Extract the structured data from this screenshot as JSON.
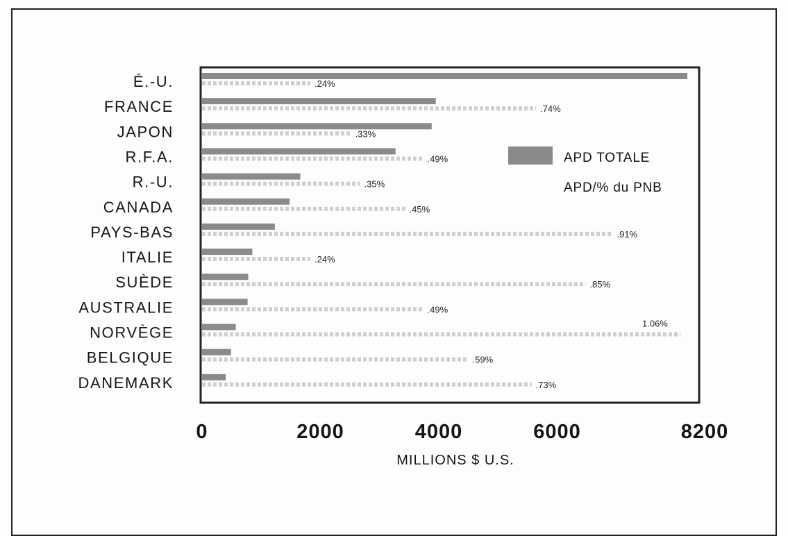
{
  "chart_data": {
    "type": "bar",
    "categories": [
      "É.-U.",
      "FRANCE",
      "JAPON",
      "R.F.A.",
      "R.-U.",
      "CANADA",
      "PAYS-BAS",
      "ITALIE",
      "SUÈDE",
      "AUSTRALIE",
      "NORVÈGE",
      "BELGIQUE",
      "DANEMARK"
    ],
    "series": [
      {
        "name": "APD TOTALE",
        "values": [
          8200,
          3950,
          3880,
          3270,
          1660,
          1480,
          1230,
          850,
          780,
          770,
          570,
          490,
          400
        ]
      },
      {
        "name": "APD/% du PNB",
        "values": [
          0.24,
          0.74,
          0.33,
          0.49,
          0.35,
          0.45,
          0.91,
          0.24,
          0.85,
          0.49,
          1.06,
          0.59,
          0.73
        ],
        "labels": [
          ".24%",
          ".74%",
          ".33%",
          ".49%",
          ".35%",
          ".45%",
          ".91%",
          ".24%",
          ".85%",
          ".49%",
          "1.06%",
          ".59%",
          ".73%"
        ]
      }
    ],
    "x_ticks": [
      "0",
      "2000",
      "4000",
      "6000",
      "8200"
    ],
    "xlabel": "MILLIONS $ U.S.",
    "ylabel": "",
    "xlim": [
      0,
      8200
    ],
    "legend_position": "right",
    "grid": false,
    "colors": {
      "total": "#8a8a8a",
      "pct": "#cfcfcf",
      "frame": "#222222"
    }
  }
}
